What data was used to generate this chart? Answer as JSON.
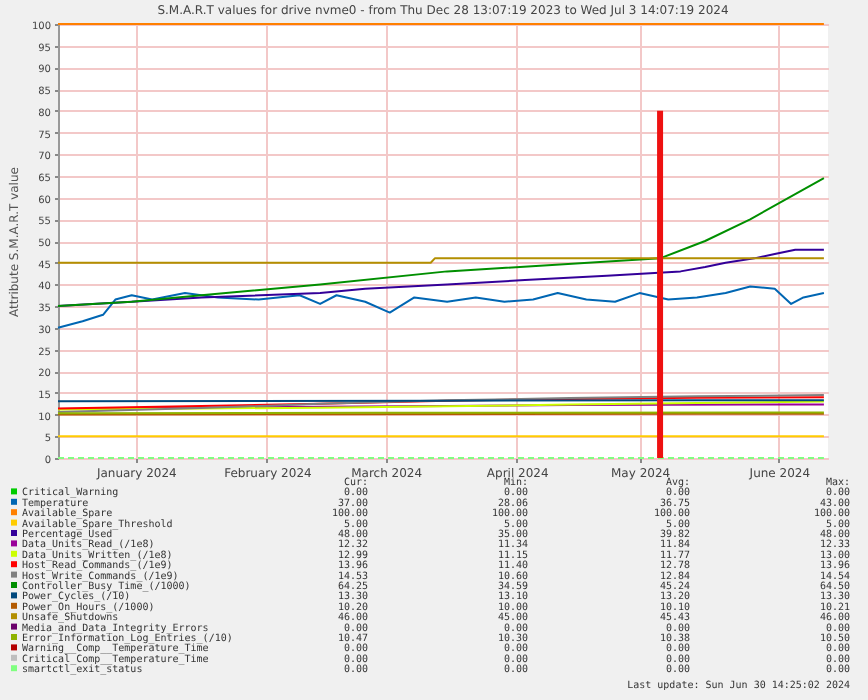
{
  "chart_data": {
    "type": "line",
    "title": "S.M.A.R.T values for drive nvme0 - from Thu Dec 28 13:07:19 2023 to Wed Jul  3 14:07:19 2024",
    "ylabel": "Attribute S.M.A.R.T value",
    "xlim": [
      "2023-12-28",
      "2024-07-03"
    ],
    "xticks": [
      {
        "value": "2024-01-16",
        "label": "January 2024"
      },
      {
        "value": "2024-02-17",
        "label": "February 2024"
      },
      {
        "value": "2024-03-17",
        "label": "March 2024"
      },
      {
        "value": "2024-04-18",
        "label": "April 2024"
      },
      {
        "value": "2024-05-18",
        "label": "May 2024"
      },
      {
        "value": "2024-06-21",
        "label": "June 2024"
      }
    ],
    "ylim": [
      0,
      100
    ],
    "yticks": [
      0,
      5,
      10,
      15,
      20,
      25,
      30,
      35,
      40,
      45,
      50,
      55,
      60,
      65,
      70,
      75,
      80,
      85,
      90,
      95,
      100
    ],
    "grid": true,
    "legend": "bottom",
    "series": [
      {
        "name": "Critical_Warning",
        "color": "#00cc00",
        "values": [
          null
        ]
      },
      {
        "name": "Temperature",
        "color": "#0066b3",
        "x": [
          "2023-12-28",
          "2024-01-03",
          "2024-01-08",
          "2024-01-11",
          "2024-01-15",
          "2024-01-20",
          "2024-01-28",
          "2024-02-05",
          "2024-02-15",
          "2024-02-25",
          "2024-03-01",
          "2024-03-05",
          "2024-03-12",
          "2024-03-18",
          "2024-03-24",
          "2024-04-01",
          "2024-04-08",
          "2024-04-15",
          "2024-04-22",
          "2024-04-28",
          "2024-05-05",
          "2024-05-12",
          "2024-05-18",
          "2024-05-25",
          "2024-06-01",
          "2024-06-08",
          "2024-06-14",
          "2024-06-20",
          "2024-06-24",
          "2024-06-27",
          "2024-07-02"
        ],
        "values": [
          30,
          31.5,
          33,
          36.5,
          37.5,
          36.5,
          38,
          37,
          36.5,
          37.5,
          35.5,
          37.5,
          36,
          33.5,
          37,
          36,
          37,
          36,
          36.5,
          38,
          36.5,
          36,
          38,
          36.5,
          37,
          38,
          39.5,
          39,
          35.5,
          37,
          38
        ]
      },
      {
        "name": "Available_Spare",
        "color": "#ff8000",
        "x": [
          "2023-12-28",
          "2024-07-02"
        ],
        "values": [
          100,
          100
        ]
      },
      {
        "name": "Available_Spare_Threshold",
        "color": "#ffcc00",
        "x": [
          "2023-12-28",
          "2024-07-02"
        ],
        "values": [
          5,
          5
        ]
      },
      {
        "name": "Percentage_Used",
        "color": "#330099",
        "x": [
          "2023-12-28",
          "2024-01-15",
          "2024-02-01",
          "2024-03-01",
          "2024-03-12",
          "2024-04-01",
          "2024-04-20",
          "2024-05-10",
          "2024-05-28",
          "2024-06-03",
          "2024-06-08",
          "2024-06-15",
          "2024-06-20",
          "2024-06-25",
          "2024-07-02"
        ],
        "values": [
          35,
          36,
          37,
          38,
          39,
          40,
          41,
          42,
          43,
          44,
          45,
          46,
          47,
          48,
          48
        ]
      },
      {
        "name": "Data_Units_Read_(/1e8)",
        "color": "#990099",
        "x": [
          "2023-12-28",
          "2024-02-01",
          "2024-03-01",
          "2024-04-01",
          "2024-05-01",
          "2024-06-15",
          "2024-07-02"
        ],
        "values": [
          11.3,
          11.6,
          11.8,
          12.0,
          12.2,
          12.3,
          12.3
        ]
      },
      {
        "name": "Data_Units_Written_(/1e8)",
        "color": "#ccff00",
        "x": [
          "2023-12-28",
          "2024-02-01",
          "2024-03-01",
          "2024-04-01",
          "2024-05-01",
          "2024-06-01",
          "2024-07-02"
        ],
        "values": [
          11.2,
          11.4,
          11.6,
          11.9,
          12.3,
          12.7,
          13.0
        ]
      },
      {
        "name": "Host_Read_Commands_(/1e9)",
        "color": "#ff0000",
        "x": [
          "2023-12-28",
          "2024-02-01",
          "2024-03-01",
          "2024-04-01",
          "2024-05-01",
          "2024-06-01",
          "2024-07-02"
        ],
        "values": [
          11.4,
          12.0,
          12.5,
          13.2,
          13.6,
          13.9,
          14.0
        ]
      },
      {
        "name": "Host_Write_Commands_(/1e9)",
        "color": "#808080",
        "x": [
          "2023-12-28",
          "2024-02-01",
          "2024-03-01",
          "2024-04-01",
          "2024-05-01",
          "2024-06-01",
          "2024-07-02"
        ],
        "values": [
          10.6,
          11.5,
          12.5,
          13.3,
          13.8,
          14.2,
          14.5
        ]
      },
      {
        "name": "Controller_Busy_Time_(/1000)",
        "color": "#008f00",
        "x": [
          "2023-12-28",
          "2024-01-15",
          "2024-02-01",
          "2024-03-01",
          "2024-04-01",
          "2024-05-23",
          "2024-06-03",
          "2024-06-14",
          "2024-07-02"
        ],
        "values": [
          35,
          36,
          37.5,
          40,
          43,
          46,
          50,
          55,
          64.5
        ]
      },
      {
        "name": "Power_Cycles_(/10)",
        "color": "#00487d",
        "x": [
          "2023-12-28",
          "2024-04-01",
          "2024-06-01",
          "2024-07-02"
        ],
        "values": [
          13.1,
          13.2,
          13.3,
          13.3
        ]
      },
      {
        "name": "Power_On_Hours_(/1000)",
        "color": "#b35a00",
        "x": [
          "2023-12-28",
          "2024-03-01",
          "2024-06-01",
          "2024-07-02"
        ],
        "values": [
          10.0,
          10.1,
          10.2,
          10.2
        ]
      },
      {
        "name": "Unsafe_Shutdowns",
        "color": "#b38f00",
        "x": [
          "2023-12-28",
          "2024-03-28",
          "2024-03-29",
          "2024-07-02"
        ],
        "values": [
          45,
          45,
          46,
          46
        ]
      },
      {
        "name": "Media_and_Data_Integrity_Errors",
        "color": "#6b006b",
        "values": [
          null
        ]
      },
      {
        "name": "Error_Information_Log_Entries_(/10)",
        "color": "#8fb300",
        "x": [
          "2023-12-28",
          "2024-03-15",
          "2024-06-20",
          "2024-07-02"
        ],
        "values": [
          10.3,
          10.4,
          10.5,
          10.5
        ]
      },
      {
        "name": "Warning__Comp__Temperature_Time",
        "color": "#b30000",
        "values": [
          null
        ]
      },
      {
        "name": "Critical_Comp__Temperature_Time",
        "color": "#bebebe",
        "values": [
          null
        ]
      },
      {
        "name": "smartctl_exit_status",
        "color": "#80ff80",
        "line_style": "dashed",
        "x": [
          "2023-12-28",
          "2024-07-02"
        ],
        "values": [
          0,
          0
        ]
      },
      {
        "color": "#ee1111",
        "x": [
          "2024-05-23",
          "2024-05-23"
        ],
        "values": [
          0,
          80
        ]
      }
    ],
    "annotations": [
      "Cur:",
      "Min:",
      "Avg:",
      "Max:",
      "0.00",
      "0.00",
      "0.00",
      "0.00",
      "37.00",
      "28.06",
      "36.75",
      "43.00",
      "100.00",
      "100.00",
      "100.00",
      "100.00",
      "5.00",
      "5.00",
      "5.00",
      "5.00",
      "48.00",
      "35.00",
      "39.82",
      "48.00",
      "12.32",
      "11.34",
      "11.84",
      "12.33",
      "12.99",
      "11.15",
      "11.77",
      "13.00",
      "13.96",
      "11.40",
      "12.78",
      "13.96",
      "14.53",
      "10.60",
      "12.84",
      "14.54",
      "64.25",
      "34.59",
      "45.24",
      "64.50",
      "13.30",
      "13.10",
      "13.20",
      "13.30",
      "10.20",
      "10.00",
      "10.10",
      "10.21",
      "46.00",
      "45.00",
      "45.43",
      "46.00",
      "0.00",
      "0.00",
      "0.00",
      "0.00",
      "10.47",
      "10.30",
      "10.38",
      "10.50",
      "0.00",
      "0.00",
      "0.00",
      "0.00",
      "0.00",
      "0.00",
      "0.00",
      "0.00",
      "0.00",
      "0.00",
      "0.00",
      "0.00",
      "Last update: Sun Jun 30 14:25:02 2024"
    ]
  }
}
